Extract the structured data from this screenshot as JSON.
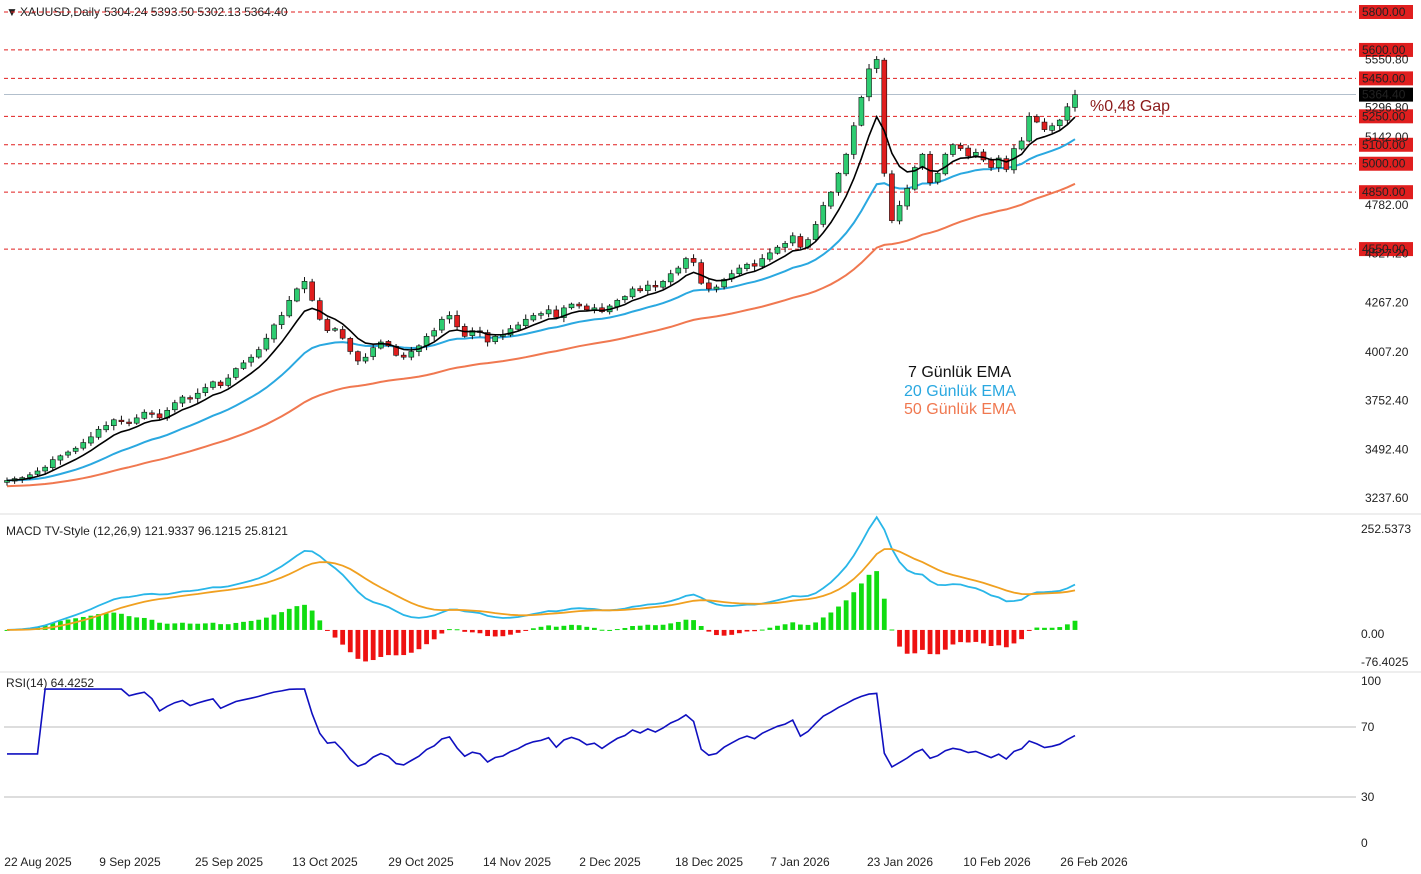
{
  "header": {
    "symbol": "XAUUSD,Daily",
    "ohlc": "5304.24 5393.50 5302.13 5364.40"
  },
  "gap_label": "%0,48 Gap",
  "legend": {
    "ema7": "7 Günlük EMA",
    "ema20": "20 Günlük EMA",
    "ema50": "50 Günlük EMA"
  },
  "colors": {
    "up": "#2ecc71",
    "down": "#e01e1e",
    "ema7": "#000000",
    "ema20": "#2aa8e0",
    "ema50": "#f07850",
    "level_line": "#e01e1e",
    "macd_line": "#29b6e8",
    "signal_line": "#f0a020",
    "rsi_line": "#1010c0",
    "price_tag": "#000000"
  },
  "macd": {
    "title": "MACD TV-Style (12,26,9) 121.9337 96.1215 25.8121",
    "axis": [
      "252.5373",
      "0.00",
      "-76.4025"
    ]
  },
  "rsi": {
    "title": "RSI(14) 64.4252",
    "axis": [
      "100",
      "70",
      "30",
      "0"
    ]
  },
  "chart_data": {
    "type": "candlestick",
    "price_axis_ticks": [
      "5550.80",
      "5296.80",
      "5142.00",
      "4782.00",
      "4527.20",
      "4267.20",
      "4007.20",
      "3752.40",
      "3492.40",
      "3237.60"
    ],
    "levels": [
      "5800.00",
      "5600.00",
      "5450.00",
      "5250.00",
      "5100.00",
      "5000.00",
      "4850.00",
      "4550.00"
    ],
    "last_price": "5364.40",
    "x_labels": [
      "22 Aug 2025",
      "9 Sep 2025",
      "25 Sep 2025",
      "13 Oct 2025",
      "29 Oct 2025",
      "14 Nov 2025",
      "2 Dec 2025",
      "18 Dec 2025",
      "7 Jan 2026",
      "23 Jan 2026",
      "10 Feb 2026",
      "26 Feb 2026"
    ],
    "closes": [
      3330,
      3340,
      3345,
      3360,
      3380,
      3400,
      3440,
      3460,
      3480,
      3500,
      3530,
      3560,
      3600,
      3620,
      3650,
      3640,
      3630,
      3660,
      3690,
      3680,
      3660,
      3700,
      3740,
      3770,
      3760,
      3790,
      3820,
      3850,
      3830,
      3870,
      3920,
      3950,
      3980,
      4020,
      4080,
      4150,
      4200,
      4280,
      4340,
      4380,
      4280,
      4180,
      4120,
      4130,
      4080,
      4010,
      3960,
      3980,
      4030,
      4060,
      4040,
      3990,
      3980,
      4010,
      4040,
      4090,
      4120,
      4180,
      4200,
      4140,
      4090,
      4120,
      4110,
      4060,
      4090,
      4100,
      4130,
      4150,
      4180,
      4200,
      4210,
      4230,
      4190,
      4240,
      4260,
      4250,
      4230,
      4240,
      4220,
      4250,
      4280,
      4300,
      4340,
      4330,
      4360,
      4350,
      4380,
      4420,
      4450,
      4500,
      4480,
      4370,
      4340,
      4350,
      4390,
      4420,
      4450,
      4470,
      4460,
      4500,
      4530,
      4560,
      4580,
      4620,
      4560,
      4600,
      4680,
      4780,
      4850,
      4950,
      5050,
      5200,
      5350,
      5500,
      5550,
      4950,
      4700,
      4780,
      4870,
      4980,
      5050,
      4900,
      4950,
      5050,
      5100,
      5080,
      5040,
      5060,
      5020,
      4980,
      5030,
      4970,
      5080,
      5120,
      5250,
      5220,
      5180,
      5200,
      5230,
      5300,
      5364
    ],
    "ema7_note": "",
    "ema20_note": "",
    "ema50_note": ""
  }
}
